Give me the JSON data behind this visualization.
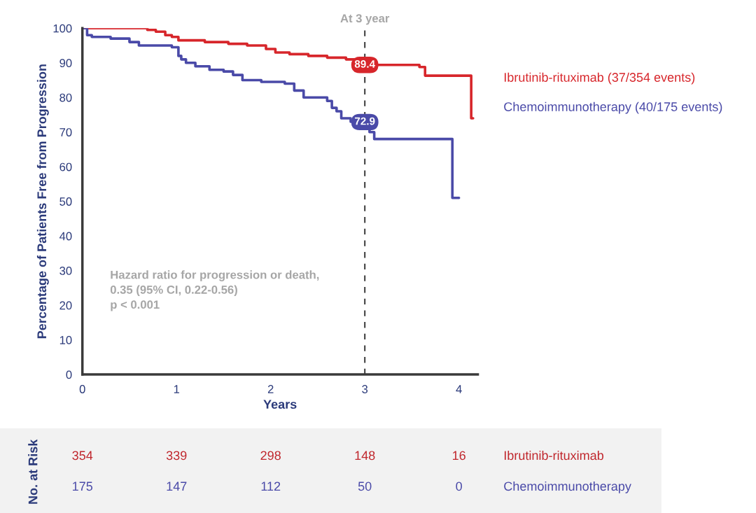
{
  "chart_data": [
    {
      "type": "step",
      "xlabel": "Years",
      "ylabel": "Percentage of Patients Free from Progression",
      "xlim": [
        0,
        4.2
      ],
      "xticks": [
        0,
        1,
        2,
        3,
        4
      ],
      "ylim": [
        0,
        100
      ],
      "yticks": [
        0,
        10,
        20,
        30,
        40,
        50,
        60,
        70,
        80,
        90,
        100
      ],
      "grid": false,
      "legend": "right",
      "marker": "none",
      "line_style": "solid",
      "series": [
        {
          "name": "Ibrutinib-rituximab (37/354 events)",
          "color": "#d7262b",
          "x": [
            0,
            0.69,
            0.78,
            0.88,
            0.95,
            1.02,
            1.3,
            1.55,
            1.75,
            1.95,
            2.05,
            2.2,
            2.4,
            2.6,
            2.8,
            2.9,
            3.0,
            3.58,
            3.64,
            4.13,
            4.15
          ],
          "values": [
            100,
            99.5,
            99,
            98,
            97.5,
            96.5,
            96,
            95.5,
            95,
            94,
            93,
            92.5,
            92,
            91.5,
            91,
            90,
            89.4,
            88.8,
            86.3,
            74,
            74
          ]
        },
        {
          "name": "Chemoimmunotherapy (40/175 events)",
          "color": "#4a4aa8",
          "x": [
            0,
            0.05,
            0.1,
            0.3,
            0.5,
            0.6,
            0.95,
            1.02,
            1.05,
            1.1,
            1.2,
            1.35,
            1.5,
            1.6,
            1.7,
            1.9,
            2.15,
            2.25,
            2.35,
            2.6,
            2.65,
            2.7,
            2.75,
            2.85,
            3.0,
            3.05,
            3.1,
            3.93,
            4.0
          ],
          "values": [
            100,
            98,
            97.5,
            97,
            96,
            95,
            94.5,
            92,
            91,
            90,
            89,
            88,
            87.5,
            86.5,
            85,
            84.5,
            84,
            82,
            80,
            79,
            77,
            76,
            74,
            73,
            72.9,
            70,
            68,
            51,
            51
          ]
        }
      ],
      "ref_lines": [
        {
          "axis": "x",
          "value": 3,
          "label": "At 3 year",
          "color": "#404040",
          "line_style": "dashed"
        }
      ],
      "annotations": [
        "Hazard ratio for progression or death,",
        "0.35 (95% CI, 0.22-0.56)",
        "p < 0.001",
        {
          "text": "89.4",
          "x": 3,
          "y": 89.4
        },
        {
          "text": "72.9",
          "x": 3,
          "y": 72.9
        }
      ]
    },
    {
      "type": "other",
      "title": "No. at Risk",
      "annotations": [
        "354",
        "339",
        "298",
        "148",
        "16",
        "175",
        "147",
        "112",
        "50",
        "0"
      ],
      "series": [
        {
          "name": "Ibrutinib-rituximab",
          "color": "#c0272d"
        },
        {
          "name": "Chemoimmunotherapy",
          "color": "#4a4aa8"
        }
      ]
    }
  ]
}
